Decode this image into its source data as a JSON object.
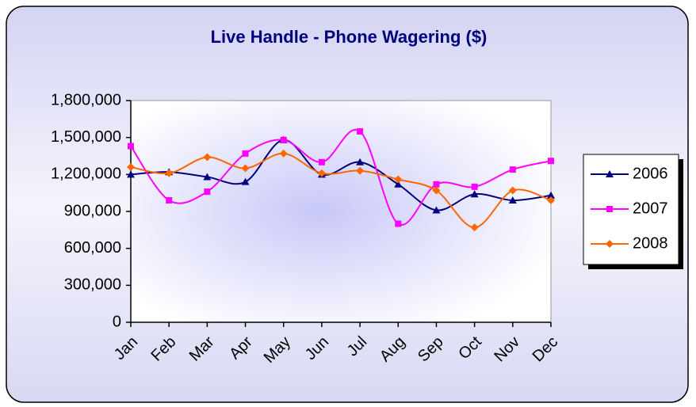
{
  "chart_data": {
    "type": "line",
    "title": "Live Handle - Phone Wagering ($)",
    "categories": [
      "Jan",
      "Feb",
      "Mar",
      "Apr",
      "May",
      "Jun",
      "Jul",
      "Aug",
      "Sep",
      "Oct",
      "Nov",
      "Dec"
    ],
    "series": [
      {
        "name": "2006",
        "color": "#000080",
        "marker": "triangle",
        "values": [
          1200000,
          1220000,
          1180000,
          1140000,
          1480000,
          1200000,
          1300000,
          1120000,
          910000,
          1040000,
          990000,
          1030000
        ]
      },
      {
        "name": "2007",
        "color": "#ff00ff",
        "marker": "square",
        "values": [
          1430000,
          990000,
          1060000,
          1370000,
          1480000,
          1300000,
          1550000,
          800000,
          1120000,
          1100000,
          1240000,
          1310000
        ]
      },
      {
        "name": "2008",
        "color": "#ff6600",
        "marker": "diamond",
        "values": [
          1260000,
          1210000,
          1340000,
          1250000,
          1370000,
          1210000,
          1230000,
          1160000,
          1070000,
          770000,
          1070000,
          990000
        ]
      }
    ],
    "ylim": [
      0,
      1800000
    ],
    "yticks": [
      0,
      {
        "value": 300000,
        "label": "300,000"
      },
      {
        "value": 600000,
        "label": "600,000"
      },
      {
        "value": 900000,
        "label": "900,000"
      },
      {
        "value": 1200000,
        "label": "1,200,000"
      },
      {
        "value": 1500000,
        "label": "1,500,000"
      },
      {
        "value": 1800000,
        "label": "1,800,000"
      }
    ],
    "smooth": true,
    "legend": "right"
  }
}
